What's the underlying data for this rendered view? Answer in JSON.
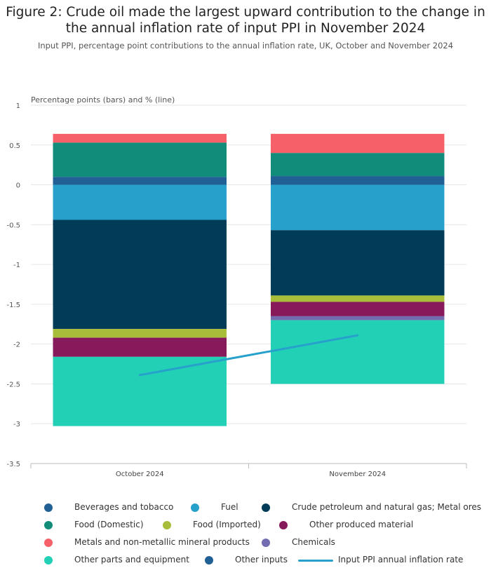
{
  "header": {
    "title_line1": "Figure 2: Crude oil made the largest upward contribution to the change in",
    "title_line2": "the annual inflation rate of input PPI in November 2024",
    "subtitle": "Input PPI, percentage point contributions to the annual inflation rate, UK, October and November 2024"
  },
  "chart_data": {
    "type": "bar",
    "stacked": true,
    "ylabel": "Percentage points (bars) and % (line)",
    "ylim": [
      -3.5,
      1
    ],
    "yticks": [
      1,
      0.5,
      0,
      -0.5,
      -1,
      -1.5,
      -2,
      -2.5,
      -3,
      -3.5
    ],
    "grid": true,
    "legend_position": "bottom",
    "categories": [
      "October 2024",
      "November 2024"
    ],
    "series": [
      {
        "name": "Beverages and tobacco",
        "color": "#206095",
        "values": [
          0.1,
          0.11
        ]
      },
      {
        "name": "Fuel",
        "color": "#27a0cc",
        "values": [
          -0.44,
          -0.57
        ]
      },
      {
        "name": "Crude petroleum and natural gas; Metal ores",
        "color": "#003c57",
        "values": [
          -1.37,
          -0.82
        ]
      },
      {
        "name": "Food (Domestic)",
        "color": "#118c7b",
        "values": [
          0.43,
          0.29
        ]
      },
      {
        "name": "Food (Imported)",
        "color": "#a8bd3a",
        "values": [
          -0.11,
          -0.08
        ]
      },
      {
        "name": "Other produced material",
        "color": "#871a5b",
        "values": [
          -0.24,
          -0.18
        ]
      },
      {
        "name": "Metals and non-metallic mineral products",
        "color": "#f66068",
        "values": [
          0.11,
          0.24
        ]
      },
      {
        "name": "Chemicals",
        "color": "#746cb1",
        "values": [
          0.0,
          -0.05
        ]
      },
      {
        "name": "Other parts and equipment",
        "color": "#22d0b6",
        "values": [
          -0.87,
          -0.8
        ]
      },
      {
        "name": "Other inputs",
        "color": "#206095",
        "values": [
          0.0,
          0.0
        ]
      }
    ],
    "line": {
      "name": "Input PPI annual inflation rate",
      "color": "#27a0cc",
      "values": [
        -2.39,
        -1.89
      ]
    }
  }
}
